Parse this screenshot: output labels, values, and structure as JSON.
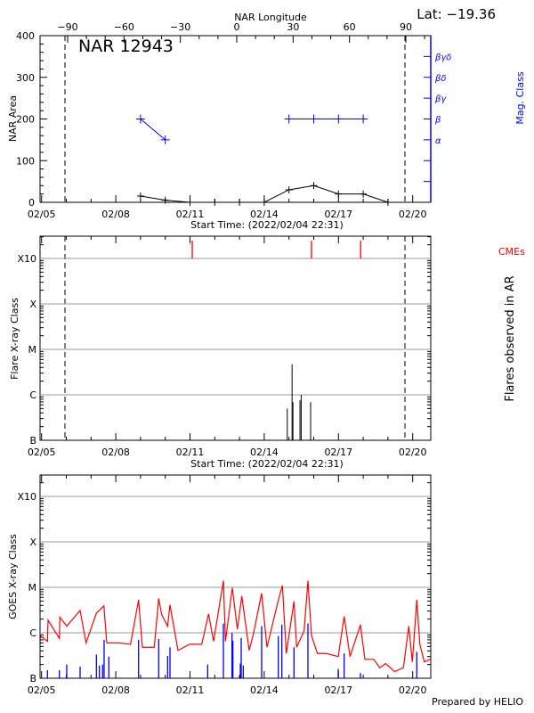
{
  "header": {
    "lat_label": "Lat: −19.36"
  },
  "footer": {
    "credit": "Prepared by HELIO"
  },
  "colors": {
    "area_line": "#000000",
    "mag_class": "#0000ff",
    "cme": "#ff0000",
    "flare": "#000000",
    "goes_long": "#ff0000",
    "goes_short": "#0000ff",
    "grid": "#999999"
  },
  "chart_data": [
    {
      "type": "line",
      "title": "NAR 12943",
      "xlabel": "Start Time: (2022/02/04 22:31)",
      "ylabel": "NAR Area",
      "y2label": "Mag. Class",
      "top_xlabel": "NAR Longitude",
      "xlim": [
        "02/04 22:31",
        "02/20 17:50"
      ],
      "x_ticks": [
        "02/05",
        "02/08",
        "02/11",
        "02/14",
        "02/17",
        "02/20"
      ],
      "ylim": [
        0,
        400
      ],
      "y_ticks": [
        0,
        100,
        200,
        300,
        400
      ],
      "top_ticks": [
        -90,
        -60,
        -30,
        0,
        30,
        60,
        90
      ],
      "mag_class_ticks": [
        "α",
        "β",
        "βγ",
        "βδ",
        "βγδ"
      ],
      "limb_markers": [
        "02/05 22:42",
        "02/19 16:30"
      ],
      "series": [
        {
          "name": "NAR Area",
          "x": [
            "02/09 00:00",
            "02/10 00:00",
            "02/11 00:00",
            "02/12 00:00",
            "02/13 00:00",
            "02/14 00:00",
            "02/15 00:00",
            "02/16 00:00",
            "02/17 00:00",
            "02/18 00:00",
            "02/19 00:00"
          ],
          "values": [
            15,
            5,
            0,
            0,
            0,
            0,
            30,
            40,
            20,
            20,
            0
          ]
        },
        {
          "name": "Mag. Class",
          "x": [
            "02/09 00:00",
            "02/10 00:00",
            "02/15 00:00",
            "02/16 00:00",
            "02/17 00:00",
            "02/18 00:00"
          ],
          "values": [
            "β",
            "α",
            "β",
            "β",
            "β",
            "β"
          ]
        }
      ]
    },
    {
      "type": "bar",
      "xlabel": "Start Time: (2022/02/04 22:31)",
      "ylabel": "Flare X-ray Class",
      "y2label": "Flares observed in AR",
      "cme_label": "CMEs",
      "x_ticks": [
        "02/05",
        "02/08",
        "02/11",
        "02/14",
        "02/17",
        "02/20"
      ],
      "y_scale": "log",
      "y_ticks": [
        "B",
        "C",
        "M",
        "X",
        "X10"
      ],
      "grid": true,
      "limb_markers": [
        "02/05 22:42",
        "02/19 16:30"
      ],
      "cmes": [
        "02/11 02:10",
        "02/15 21:50",
        "02/17 21:30"
      ],
      "flares": [
        {
          "time": "02/14 22:20",
          "class": "B5.0"
        },
        {
          "time": "02/15 03:00",
          "class": "C4.7"
        },
        {
          "time": "02/15 03:50",
          "class": "B6.9"
        },
        {
          "time": "02/15 10:40",
          "class": "B7.6"
        },
        {
          "time": "02/15 11:50",
          "class": "C1.0"
        },
        {
          "time": "02/15 21:00",
          "class": "B6.9"
        }
      ]
    },
    {
      "type": "line",
      "ylabel": "GOES X-ray Class",
      "x_ticks": [
        "02/05",
        "02/08",
        "02/11",
        "02/14",
        "02/17",
        "02/20"
      ],
      "y_scale": "log",
      "y_ticks": [
        "B",
        "C",
        "M",
        "X",
        "X10"
      ],
      "grid": true,
      "series": [
        {
          "x": [
            "02/04 22:31",
            "02/05 05:43",
            "02/05 06:18",
            "02/05 17:15",
            "02/05 17:47",
            "02/06 00:26",
            "02/06 13:23",
            "02/06 19:09",
            "02/07 05:11",
            "02/07 12:26",
            "02/07 15:17",
            "02/08 02:46",
            "02/08 14:19",
            "02/08 22:06",
            "02/09 01:48",
            "02/09 13:18",
            "02/09 17:37",
            "02/09 20:33",
            "02/10 02:15",
            "02/10 04:35",
            "02/10 12:20",
            "02/10 23:50",
            "02/11 11:24",
            "02/11 17:59",
            "02/11 22:52",
            "02/12 08:23",
            "02/12 10:22",
            "02/12 17:01",
            "02/12 21:56",
            "02/13 02:15",
            "02/13 09:24",
            "02/13 13:44",
            "02/13 21:30",
            "02/14 02:41",
            "02/14 13:38",
            "02/14 17:37",
            "02/14 21:24",
            "02/15 04:51",
            "02/15 07:25",
            "02/15 14:41",
            "02/15 18:23",
            "02/15 21:50",
            "02/16 03:37",
            "02/16 12:16",
            "02/16 23:46",
            "02/17 05:31",
            "02/17 11:14",
            "02/17 21:19",
            "02/18 01:38",
            "02/18 10:16",
            "02/18 16:03",
            "02/18 21:45",
            "02/19 06:23",
            "02/19 15:01",
            "02/19 20:12",
            "02/19 23:40",
            "02/20 03:59",
            "02/20 06:55",
            "02/20 11:14",
            "02/20 16:58"
          ],
          "values": [
            8.7e-07,
            6.5e-07,
            1.9e-06,
            7.5e-07,
            2.2e-06,
            1.4e-06,
            3.1e-06,
            6e-07,
            2.7e-06,
            3.9e-06,
            6e-07,
            6e-07,
            5.6e-07,
            5.3e-06,
            4.8e-07,
            4.8e-07,
            5.7e-06,
            2.5e-06,
            1.4e-06,
            4.1e-06,
            4.1e-07,
            5.6e-07,
            5.6e-07,
            2.6e-06,
            6.5e-07,
            1.4e-05,
            6.5e-07,
            9.7e-06,
            1.2e-06,
            6.4e-06,
            4.1e-07,
            1e-06,
            7.4e-06,
            4.8e-07,
            5.2e-06,
            1.1e-05,
            3.5e-07,
            4.9e-06,
            4.8e-07,
            1.1e-06,
            1.4e-05,
            8.7e-07,
            3.5e-07,
            3.5e-07,
            3e-07,
            2.3e-06,
            3e-07,
            1.5e-06,
            2.6e-07,
            2.6e-07,
            1.7e-07,
            2.1e-07,
            1.4e-07,
            1.7e-07,
            1.4e-06,
            2.3e-07,
            5.3e-06,
            5.6e-07,
            2.3e-07,
            2.6e-07
          ]
        },
        {
          "x": [
            "02/05 05:43",
            "02/05 17:15",
            "02/06 00:26",
            "02/06 13:23",
            "02/07 05:11",
            "02/07 08:04",
            "02/07 11:14",
            "02/07 12:40",
            "02/07 17:15",
            "02/08 22:06",
            "02/09 17:37",
            "02/10 02:15",
            "02/10 04:35",
            "02/11 17:08",
            "02/12 08:23",
            "02/12 16:44",
            "02/12 17:36",
            "02/13 00:48",
            "02/13 01:39",
            "02/13 03:40",
            "02/13 21:30",
            "02/14 13:38",
            "02/14 17:05",
            "02/15 04:51",
            "02/15 18:23",
            "02/16 23:46",
            "02/17 05:31",
            "02/17 21:19",
            "02/20 03:59"
          ],
          "values": [
            1.5e-07,
            1.5e-07,
            2e-07,
            1.8e-07,
            3.3e-07,
            1.9e-07,
            2e-07,
            7e-07,
            3e-07,
            7e-07,
            7.3e-07,
            3.1e-07,
            4.8e-07,
            2e-07,
            1.6e-06,
            1e-06,
            6.7e-07,
            2.1e-07,
            7.7e-07,
            1.9e-07,
            1.4e-06,
            8.5e-07,
            1.5e-06,
            4.8e-07,
            1.6e-06,
            1.6e-07,
            3.5e-07,
            1.3e-07,
            3.8e-07
          ]
        }
      ]
    }
  ]
}
